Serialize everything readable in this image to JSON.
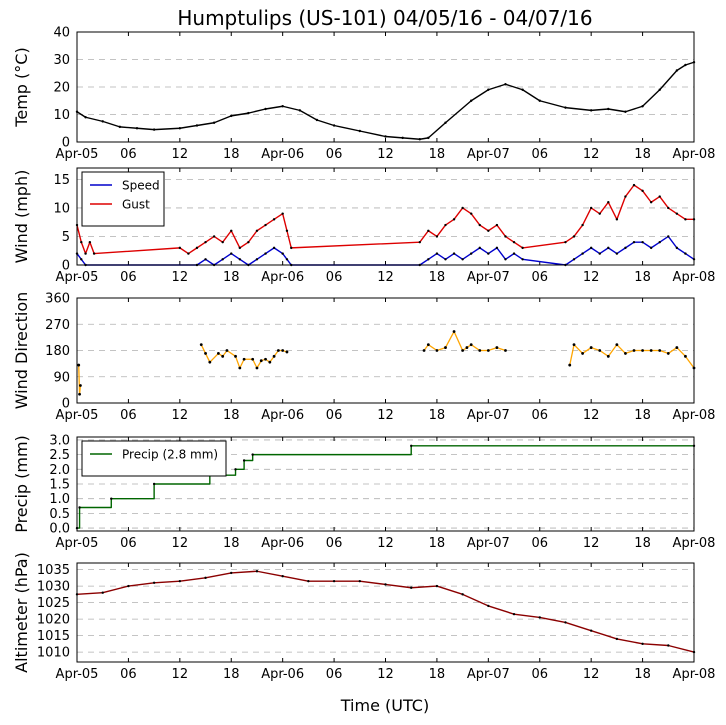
{
  "chart_data": {
    "type": "line",
    "title": "Humptulips (US-101) 04/05/16 - 04/07/16",
    "xlabel": "Time (UTC)",
    "x_range_hours": [
      0,
      72
    ],
    "x_ticks": [
      {
        "hour": 0,
        "label": "Apr-05"
      },
      {
        "hour": 6,
        "label": "06"
      },
      {
        "hour": 12,
        "label": "12"
      },
      {
        "hour": 18,
        "label": "18"
      },
      {
        "hour": 24,
        "label": "Apr-06"
      },
      {
        "hour": 30,
        "label": "06"
      },
      {
        "hour": 36,
        "label": "12"
      },
      {
        "hour": 42,
        "label": "18"
      },
      {
        "hour": 48,
        "label": "Apr-07"
      },
      {
        "hour": 54,
        "label": "06"
      },
      {
        "hour": 60,
        "label": "12"
      },
      {
        "hour": 66,
        "label": "18"
      },
      {
        "hour": 72,
        "label": "Apr-08"
      }
    ],
    "panels": [
      {
        "id": "temp",
        "ylabel": "Temp (°C)",
        "ylim": [
          0,
          40
        ],
        "yticks": [
          0,
          10,
          20,
          30,
          40
        ],
        "series": [
          {
            "name": "Temperature",
            "color": "#000000",
            "x": [
              0,
              1,
              3,
              5,
              7,
              9,
              12,
              14,
              16,
              18,
              20,
              22,
              24,
              26,
              28,
              30,
              33,
              36,
              38,
              40,
              41,
              43,
              46,
              48,
              50,
              52,
              54,
              57,
              60,
              62,
              64,
              66,
              68,
              70,
              71,
              72
            ],
            "y": [
              11,
              9,
              7.5,
              5.5,
              5,
              4.5,
              5,
              6,
              7,
              9.5,
              10.5,
              12,
              13,
              11.5,
              8,
              6,
              4,
              2,
              1.5,
              1,
              1.5,
              7,
              15,
              19,
              21,
              19,
              15,
              12.5,
              11.5,
              12,
              11,
              13,
              19,
              26,
              28,
              29
            ]
          }
        ]
      },
      {
        "id": "wind",
        "ylabel": "Wind (mph)",
        "ylim": [
          0,
          17
        ],
        "yticks": [
          0,
          5,
          10,
          15
        ],
        "legend": "top-left",
        "series": [
          {
            "name": "Speed",
            "color": "#0000cc",
            "x": [
              0,
              0.5,
              1,
              14,
              15,
              16,
              17,
              18,
              19,
              20,
              21,
              22,
              23,
              24,
              24.5,
              25,
              40,
              41,
              42,
              43,
              44,
              45,
              46,
              47,
              48,
              49,
              50,
              51,
              52,
              57,
              58,
              59,
              60,
              61,
              62,
              63,
              64,
              65,
              66,
              67,
              68,
              69,
              70,
              71,
              72
            ],
            "y": [
              2,
              1,
              0,
              0,
              1,
              0,
              1,
              2,
              1,
              0,
              1,
              2,
              3,
              2,
              1,
              0,
              0,
              1,
              2,
              1,
              2,
              1,
              2,
              3,
              2,
              3,
              1,
              2,
              1,
              0,
              1,
              2,
              3,
              2,
              3,
              2,
              3,
              4,
              4,
              3,
              4,
              5,
              3,
              2,
              1
            ]
          },
          {
            "name": "Gust",
            "color": "#dd0000",
            "x": [
              0,
              0.5,
              1,
              1.5,
              2,
              12,
              13,
              14,
              15,
              16,
              17,
              18,
              19,
              20,
              21,
              22,
              23,
              24,
              24.5,
              25,
              40,
              41,
              42,
              43,
              44,
              45,
              46,
              47,
              48,
              49,
              50,
              51,
              52,
              57,
              58,
              59,
              60,
              61,
              62,
              63,
              64,
              65,
              66,
              67,
              68,
              69,
              70,
              71,
              72
            ],
            "y": [
              7,
              4,
              2,
              4,
              2,
              3,
              2,
              3,
              4,
              5,
              4,
              6,
              3,
              4,
              6,
              7,
              8,
              9,
              6,
              3,
              4,
              6,
              5,
              7,
              8,
              10,
              9,
              7,
              6,
              7,
              5,
              4,
              3,
              4,
              5,
              7,
              10,
              9,
              11,
              8,
              12,
              14,
              13,
              11,
              12,
              10,
              9,
              8,
              8
            ]
          }
        ]
      },
      {
        "id": "dir",
        "ylabel": "Wind Direction",
        "ylim": [
          0,
          360
        ],
        "yticks": [
          0,
          90,
          180,
          270,
          360
        ],
        "series": [
          {
            "name": "Direction",
            "color": "#ffa500",
            "x": [
              0.2,
              0.3,
              0.4,
              14.5,
              15,
              15.5,
              16.5,
              17,
              17.5,
              18.5,
              19,
              19.5,
              20.5,
              21,
              21.5,
              22,
              22.5,
              23,
              23.5,
              24,
              24.5,
              40.5,
              41,
              42,
              43,
              44,
              45,
              45.5,
              46,
              47,
              48,
              49,
              50,
              57.5,
              58,
              59,
              60,
              61,
              62,
              63,
              64,
              65,
              66,
              67,
              68,
              69,
              70,
              71,
              72
            ],
            "y": [
              130,
              30,
              60,
              200,
              170,
              140,
              170,
              160,
              180,
              160,
              120,
              150,
              150,
              120,
              145,
              150,
              140,
              160,
              180,
              180,
              175,
              180,
              200,
              180,
              190,
              245,
              180,
              190,
              200,
              180,
              180,
              190,
              180,
              130,
              200,
              170,
              190,
              180,
              160,
              200,
              170,
              180,
              180,
              180,
              180,
              170,
              190,
              160,
              120
            ]
          }
        ]
      },
      {
        "id": "precip",
        "ylabel": "Precip (mm)",
        "ylim": [
          -0.1,
          3.1
        ],
        "yticks": [
          0.0,
          0.5,
          1.0,
          1.5,
          2.0,
          2.5,
          3.0
        ],
        "legend": "top-left",
        "series": [
          {
            "name": "Precip (2.8 mm)",
            "color": "#006600",
            "step": true,
            "x": [
              0,
              0.3,
              4,
              9,
              15.5,
              18.5,
              19.5,
              20.5,
              39,
              72
            ],
            "y": [
              0.0,
              0.7,
              1.0,
              1.5,
              1.8,
              2.0,
              2.3,
              2.5,
              2.8,
              2.8
            ]
          }
        ]
      },
      {
        "id": "alti",
        "ylabel": "Altimeter (hPa)",
        "ylim": [
          1007,
          1037
        ],
        "yticks": [
          1010,
          1015,
          1020,
          1025,
          1030,
          1035
        ],
        "series": [
          {
            "name": "Altimeter",
            "color": "#8b0000",
            "x": [
              0,
              3,
              6,
              9,
              12,
              15,
              18,
              21,
              24,
              27,
              30,
              33,
              36,
              39,
              42,
              45,
              48,
              51,
              54,
              57,
              60,
              63,
              66,
              69,
              72
            ],
            "y": [
              1027.5,
              1028,
              1030,
              1031,
              1031.5,
              1032.5,
              1034,
              1034.5,
              1033,
              1031.5,
              1031.5,
              1031.5,
              1030.5,
              1029.5,
              1030,
              1027.5,
              1024,
              1021.5,
              1020.5,
              1019,
              1016.5,
              1014,
              1012.5,
              1012,
              1010
            ]
          }
        ]
      }
    ]
  }
}
